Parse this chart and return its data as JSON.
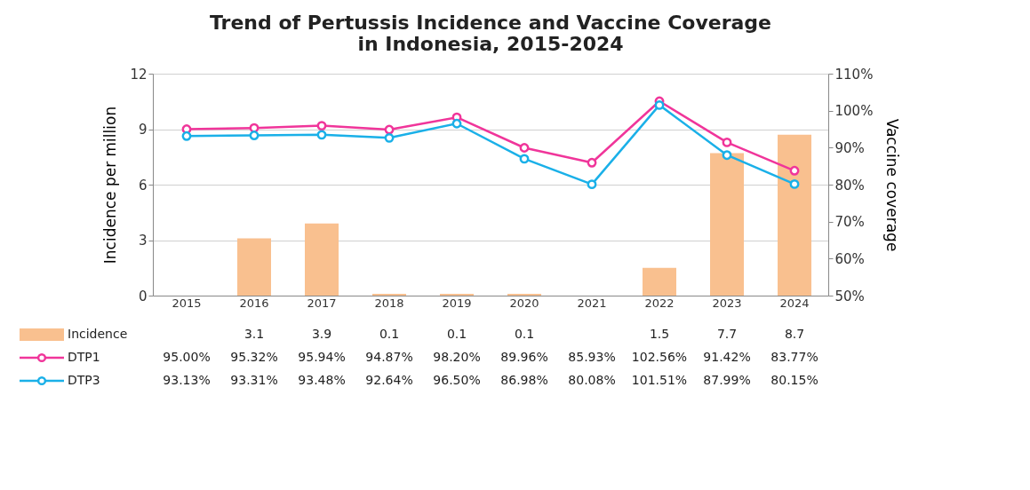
{
  "chart_data": {
    "type": "bar",
    "title": "Trend of Pertussis Incidence and Vaccine Coverage in Indonesia, 2015-2024",
    "ylabel": "Incidence per million",
    "y2label": "Vaccine coverage",
    "categories": [
      "2015",
      "2016",
      "2017",
      "2018",
      "2019",
      "2020",
      "2021",
      "2022",
      "2023",
      "2024"
    ],
    "series": [
      {
        "name": "Incidence",
        "color": "#f9c08f",
        "values": [
          null,
          3.1,
          3.9,
          0.1,
          0.1,
          0.1,
          null,
          1.5,
          7.7,
          8.7
        ],
        "value_labels": [
          null,
          "3.1",
          "3.9",
          "0.1",
          "0.1",
          "0.1",
          null,
          "1.5",
          "7.7",
          "8.7"
        ]
      },
      {
        "name": "DTP1",
        "type": "line",
        "axis": "y2",
        "color": "#f0359a",
        "values": [
          95.0,
          95.32,
          95.94,
          94.87,
          98.2,
          89.96,
          85.93,
          102.56,
          91.42,
          83.77
        ],
        "value_labels": [
          "95.00%",
          "95.32%",
          "95.94%",
          "94.87%",
          "98.20%",
          "89.96%",
          "85.93%",
          "102.56%",
          "91.42%",
          "83.77%"
        ]
      },
      {
        "name": "DTP3",
        "type": "line",
        "axis": "y2",
        "color": "#1ab0e8",
        "values": [
          93.13,
          93.31,
          93.48,
          92.64,
          96.5,
          86.98,
          80.08,
          101.51,
          87.99,
          80.15
        ],
        "value_labels": [
          "93.13%",
          "93.31%",
          "93.48%",
          "92.64%",
          "96.50%",
          "86.98%",
          "80.08%",
          "101.51%",
          "87.99%",
          "80.15%"
        ]
      }
    ],
    "ylim": [
      0,
      12
    ],
    "yticks": [
      0,
      3,
      6,
      9,
      12
    ],
    "y2lim": [
      50,
      110
    ],
    "y2ticks": [
      {
        "value": 50,
        "label": "50%"
      },
      {
        "value": 60,
        "label": "60%"
      },
      {
        "value": 70,
        "label": "70%"
      },
      {
        "value": 80,
        "label": "80%"
      },
      {
        "value": 90,
        "label": "90%"
      },
      {
        "value": 100,
        "label": "100%"
      },
      {
        "value": 110,
        "label": "110%"
      }
    ],
    "grid": "y",
    "marker": "circle",
    "legend": "bottom left"
  }
}
